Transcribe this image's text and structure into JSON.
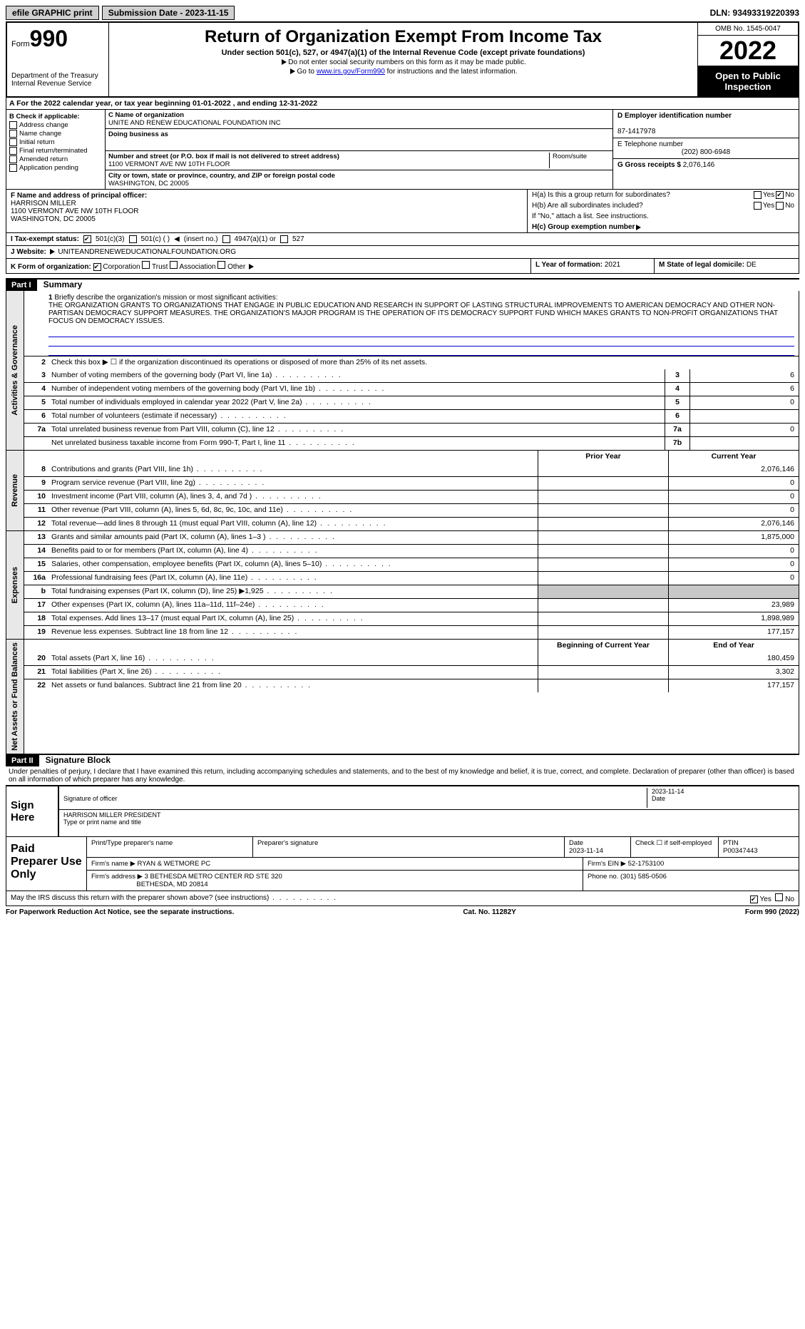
{
  "top": {
    "efile": "efile GRAPHIC print",
    "submission_label": "Submission Date - 2023-11-15",
    "dln": "DLN: 93493319220393"
  },
  "header": {
    "form_prefix": "Form",
    "form_number": "990",
    "dept": "Department of the Treasury",
    "irs": "Internal Revenue Service",
    "title": "Return of Organization Exempt From Income Tax",
    "subtitle": "Under section 501(c), 527, or 4947(a)(1) of the Internal Revenue Code (except private foundations)",
    "instr1": "Do not enter social security numbers on this form as it may be made public.",
    "instr2_pre": "Go to ",
    "instr2_link": "www.irs.gov/Form990",
    "instr2_post": " for instructions and the latest information.",
    "omb": "OMB No. 1545-0047",
    "year": "2022",
    "open": "Open to Public Inspection"
  },
  "a": {
    "text": "For the 2022 calendar year, or tax year beginning 01-01-2022   , and ending 12-31-2022"
  },
  "b": {
    "label": "B Check if applicable:",
    "items": [
      "Address change",
      "Name change",
      "Initial return",
      "Final return/terminated",
      "Amended return",
      "Application pending"
    ]
  },
  "c": {
    "name_label": "C Name of organization",
    "name": "UNITE AND RENEW EDUCATIONAL FOUNDATION INC",
    "dba_label": "Doing business as",
    "dba": "",
    "street_label": "Number and street (or P.O. box if mail is not delivered to street address)",
    "street": "1100 VERMONT AVE NW 10TH FLOOR",
    "room_label": "Room/suite",
    "city_label": "City or town, state or province, country, and ZIP or foreign postal code",
    "city": "WASHINGTON, DC  20005"
  },
  "d": {
    "label": "D Employer identification number",
    "value": "87-1417978"
  },
  "e": {
    "label": "E Telephone number",
    "value": "(202) 800-6948"
  },
  "g": {
    "label": "G Gross receipts $",
    "value": "2,076,146"
  },
  "f": {
    "label": "F Name and address of principal officer:",
    "name": "HARRISON MILLER",
    "addr1": "1100 VERMONT AVE NW 10TH FLOOR",
    "addr2": "WASHINGTON, DC  20005"
  },
  "h": {
    "a_label": "H(a)  Is this a group return for subordinates?",
    "b_label": "H(b)  Are all subordinates included?",
    "b_note": "If \"No,\" attach a list. See instructions.",
    "c_label": "H(c)  Group exemption number",
    "yes": "Yes",
    "no": "No"
  },
  "i": {
    "label": "I   Tax-exempt status:",
    "o1": "501(c)(3)",
    "o2": "501(c) (  )",
    "o2b": "(insert no.)",
    "o3": "4947(a)(1) or",
    "o4": "527"
  },
  "j": {
    "label": "J   Website:",
    "value": "UNITEANDRENEWEDUCATIONALFOUNDATION.ORG"
  },
  "k": {
    "label": "K Form of organization:",
    "o1": "Corporation",
    "o2": "Trust",
    "o3": "Association",
    "o4": "Other"
  },
  "l": {
    "label": "L Year of formation:",
    "value": "2021"
  },
  "m": {
    "label": "M State of legal domicile:",
    "value": "DE"
  },
  "part1": {
    "header": "Part I",
    "title": "Summary",
    "q1_label": "1",
    "q1_text": "Briefly describe the organization's mission or most significant activities:",
    "mission": "THE ORGANIZATION GRANTS TO ORGANIZATIONS THAT ENGAGE IN PUBLIC EDUCATION AND RESEARCH IN SUPPORT OF LASTING STRUCTURAL IMPROVEMENTS TO AMERICAN DEMOCRACY AND OTHER NON-PARTISAN DEMOCRACY SUPPORT MEASURES. THE ORGANIZATION'S MAJOR PROGRAM IS THE OPERATION OF ITS DEMOCRACY SUPPORT FUND WHICH MAKES GRANTS TO NON-PROFIT ORGANIZATIONS THAT FOCUS ON DEMOCRACY ISSUES.",
    "q2": "Check this box ▶ ☐  if the organization discontinued its operations or disposed of more than 25% of its net assets.",
    "vlabel_ag": "Activities & Governance",
    "vlabel_rev": "Revenue",
    "vlabel_exp": "Expenses",
    "vlabel_na": "Net Assets or Fund Balances",
    "lines_ag": [
      {
        "n": "3",
        "t": "Number of voting members of the governing body (Part VI, line 1a)",
        "box": "3",
        "v": "6"
      },
      {
        "n": "4",
        "t": "Number of independent voting members of the governing body (Part VI, line 1b)",
        "box": "4",
        "v": "6"
      },
      {
        "n": "5",
        "t": "Total number of individuals employed in calendar year 2022 (Part V, line 2a)",
        "box": "5",
        "v": "0"
      },
      {
        "n": "6",
        "t": "Total number of volunteers (estimate if necessary)",
        "box": "6",
        "v": ""
      },
      {
        "n": "7a",
        "t": "Total unrelated business revenue from Part VIII, column (C), line 12",
        "box": "7a",
        "v": "0"
      },
      {
        "n": "",
        "t": "Net unrelated business taxable income from Form 990-T, Part I, line 11",
        "box": "7b",
        "v": ""
      }
    ],
    "col_prior": "Prior Year",
    "col_current": "Current Year",
    "col_begin": "Beginning of Current Year",
    "col_end": "End of Year",
    "lines_rev": [
      {
        "n": "8",
        "t": "Contributions and grants (Part VIII, line 1h)",
        "p": "",
        "c": "2,076,146"
      },
      {
        "n": "9",
        "t": "Program service revenue (Part VIII, line 2g)",
        "p": "",
        "c": "0"
      },
      {
        "n": "10",
        "t": "Investment income (Part VIII, column (A), lines 3, 4, and 7d )",
        "p": "",
        "c": "0"
      },
      {
        "n": "11",
        "t": "Other revenue (Part VIII, column (A), lines 5, 6d, 8c, 9c, 10c, and 11e)",
        "p": "",
        "c": "0"
      },
      {
        "n": "12",
        "t": "Total revenue—add lines 8 through 11 (must equal Part VIII, column (A), line 12)",
        "p": "",
        "c": "2,076,146"
      }
    ],
    "lines_exp": [
      {
        "n": "13",
        "t": "Grants and similar amounts paid (Part IX, column (A), lines 1–3 )",
        "p": "",
        "c": "1,875,000"
      },
      {
        "n": "14",
        "t": "Benefits paid to or for members (Part IX, column (A), line 4)",
        "p": "",
        "c": "0"
      },
      {
        "n": "15",
        "t": "Salaries, other compensation, employee benefits (Part IX, column (A), lines 5–10)",
        "p": "",
        "c": "0"
      },
      {
        "n": "16a",
        "t": "Professional fundraising fees (Part IX, column (A), line 11e)",
        "p": "",
        "c": "0"
      },
      {
        "n": "b",
        "t": "Total fundraising expenses (Part IX, column (D), line 25) ▶1,925",
        "p": "gray",
        "c": "gray"
      },
      {
        "n": "17",
        "t": "Other expenses (Part IX, column (A), lines 11a–11d, 11f–24e)",
        "p": "",
        "c": "23,989"
      },
      {
        "n": "18",
        "t": "Total expenses. Add lines 13–17 (must equal Part IX, column (A), line 25)",
        "p": "",
        "c": "1,898,989"
      },
      {
        "n": "19",
        "t": "Revenue less expenses. Subtract line 18 from line 12",
        "p": "",
        "c": "177,157"
      }
    ],
    "lines_na": [
      {
        "n": "20",
        "t": "Total assets (Part X, line 16)",
        "p": "",
        "c": "180,459"
      },
      {
        "n": "21",
        "t": "Total liabilities (Part X, line 26)",
        "p": "",
        "c": "3,302"
      },
      {
        "n": "22",
        "t": "Net assets or fund balances. Subtract line 21 from line 20",
        "p": "",
        "c": "177,157"
      }
    ]
  },
  "part2": {
    "header": "Part II",
    "title": "Signature Block",
    "declaration": "Under penalties of perjury, I declare that I have examined this return, including accompanying schedules and statements, and to the best of my knowledge and belief, it is true, correct, and complete. Declaration of preparer (other than officer) is based on all information of which preparer has any knowledge.",
    "sign_label": "Sign Here",
    "sig_officer": "Signature of officer",
    "date_label": "Date",
    "sig_date": "2023-11-14",
    "name_title": "HARRISON MILLER  PRESIDENT",
    "name_title_label": "Type or print name and title",
    "paid_label": "Paid Preparer Use Only",
    "prep_name_label": "Print/Type preparer's name",
    "prep_name": "",
    "prep_sig_label": "Preparer's signature",
    "prep_date_label": "Date",
    "prep_date": "2023-11-14",
    "check_self": "Check ☐ if self-employed",
    "ptin_label": "PTIN",
    "ptin": "P00347443",
    "firm_name_label": "Firm's name    ▶",
    "firm_name": "RYAN & WETMORE PC",
    "firm_ein_label": "Firm's EIN ▶",
    "firm_ein": "52-1753100",
    "firm_addr_label": "Firm's address ▶",
    "firm_addr1": "3 BETHESDA METRO CENTER RD STE 320",
    "firm_addr2": "BETHESDA, MD  20814",
    "phone_label": "Phone no.",
    "phone": "(301) 585-0506",
    "discuss": "May the IRS discuss this return with the preparer shown above? (see instructions)"
  },
  "footer": {
    "notice": "For Paperwork Reduction Act Notice, see the separate instructions.",
    "cat": "Cat. No. 11282Y",
    "form": "Form 990 (2022)"
  }
}
